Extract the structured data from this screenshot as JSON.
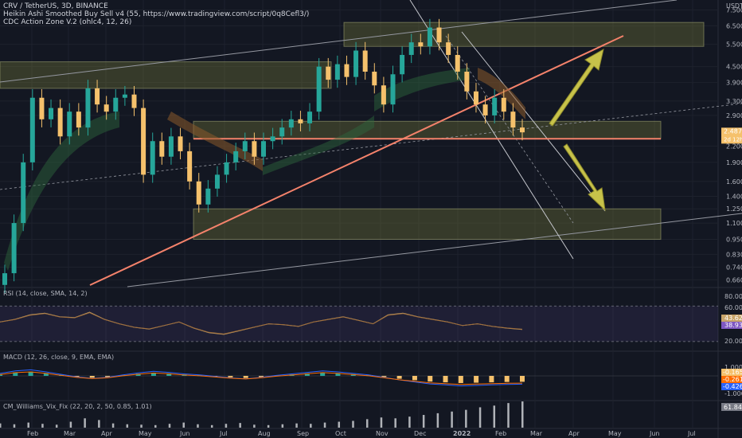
{
  "header": {
    "symbol_line": "CRV / TetherUS, 3D, BINANCE",
    "indicator_1": "Heikin Ashi Smoothed Buy Sell v4 (55, https://www.tradingview.com/script/0q8Cefl3/)",
    "indicator_2": "CDC Action Zone V.2 (ohlc4, 12, 26)"
  },
  "price_axis": {
    "currency": "USDT",
    "ticks": [
      "7.500",
      "6.500",
      "5.500",
      "4.500",
      "3.900",
      "3.300",
      "2.900",
      "2.200",
      "1.900",
      "1.600",
      "1.400",
      "1.250",
      "1.100",
      "0.950",
      "0.830",
      "0.740",
      "0.660"
    ],
    "last_price": "2.487",
    "countdown": "2d 12h"
  },
  "time_axis": {
    "labels": [
      "Feb",
      "Mar",
      "Apr",
      "May",
      "Jun",
      "Jul",
      "Aug",
      "Sep",
      "Oct",
      "Nov",
      "Dec",
      "2022",
      "Feb",
      "Mar",
      "Apr",
      "May",
      "Jun",
      "Jul"
    ]
  },
  "rsi": {
    "title": "RSI (14, close, SMA, 14, 2)",
    "ticks": [
      "80.00",
      "60.00",
      "20.00"
    ],
    "badges": [
      "43.62",
      "38.93"
    ]
  },
  "macd": {
    "title": "MACD (12, 26, close, 9, EMA, EMA)",
    "ticks": [
      "1.000",
      "0.000",
      "-1.000"
    ],
    "badges": [
      "-0.165",
      "-0.261",
      "-0.426"
    ]
  },
  "vix": {
    "title": "CM_Williams_Vix_Fix (22, 20, 2, 50, 0.85, 1.01)",
    "badge": "61.844"
  },
  "colors": {
    "background": "#131722",
    "up_candle": "#26a69a",
    "down_candle": "#f5c16c",
    "trendline": "#f4826b",
    "arrow": "#c7c24a",
    "zone_fill": "#787b3a",
    "rsi_line": "#c8a56a",
    "macd_up": "#26a69a",
    "macd_down": "#f5c16c"
  },
  "chart_data": {
    "type": "candlestick",
    "scale": "log",
    "y_range": [
      0.62,
      8.2
    ],
    "x_months": [
      "Feb",
      "Mar",
      "Apr",
      "May",
      "Jun",
      "Jul",
      "Aug",
      "Sep",
      "Oct",
      "Nov",
      "Dec",
      "2022",
      "Feb"
    ],
    "close_series_approx": [
      0.7,
      1.1,
      1.9,
      3.4,
      2.8,
      3.1,
      2.4,
      3.0,
      2.6,
      3.7,
      3.2,
      3.0,
      3.4,
      3.5,
      3.1,
      1.7,
      2.3,
      2.0,
      2.4,
      2.1,
      1.6,
      1.3,
      1.5,
      1.7,
      1.9,
      2.1,
      2.3,
      2.0,
      2.3,
      2.4,
      2.6,
      2.8,
      2.7,
      3.0,
      4.5,
      4.0,
      4.6,
      4.1,
      5.2,
      4.3,
      3.8,
      3.2,
      4.2,
      5.0,
      5.6,
      5.4,
      6.4,
      5.6,
      5.0,
      4.3,
      3.6,
      3.2,
      2.9,
      3.4,
      3.0,
      2.6,
      2.49
    ],
    "zones": [
      {
        "low": 5.4,
        "high": 6.7
      },
      {
        "low": 3.7,
        "high": 4.7
      },
      {
        "low": 2.35,
        "high": 2.75
      },
      {
        "low": 0.95,
        "high": 1.25
      }
    ],
    "rsi_values": [
      52,
      55,
      60,
      62,
      58,
      57,
      63,
      55,
      50,
      46,
      44,
      48,
      52,
      45,
      40,
      38,
      42,
      46,
      50,
      49,
      47,
      52,
      55,
      58,
      54,
      50,
      60,
      62,
      58,
      55,
      52,
      48,
      50,
      47,
      45,
      43.62
    ],
    "macd_histogram": [
      0.05,
      0.1,
      0.12,
      0.08,
      0.03,
      -0.02,
      -0.05,
      -0.03,
      0.02,
      0.06,
      0.09,
      0.07,
      0.04,
      0.02,
      -0.01,
      -0.04,
      -0.06,
      -0.03,
      0.01,
      0.04,
      0.07,
      0.1,
      0.08,
      0.05,
      0.02,
      -0.03,
      -0.08,
      -0.12,
      -0.16,
      -0.18,
      -0.2,
      -0.19,
      -0.18,
      -0.17,
      -0.165
    ],
    "vix_values": [
      10,
      8,
      12,
      9,
      7,
      14,
      22,
      18,
      10,
      8,
      7,
      6,
      9,
      12,
      8,
      6,
      9,
      11,
      7,
      6,
      8,
      10,
      9,
      12,
      14,
      16,
      20,
      24,
      22,
      26,
      30,
      34,
      38,
      42,
      48,
      52,
      58,
      61.844
    ]
  }
}
